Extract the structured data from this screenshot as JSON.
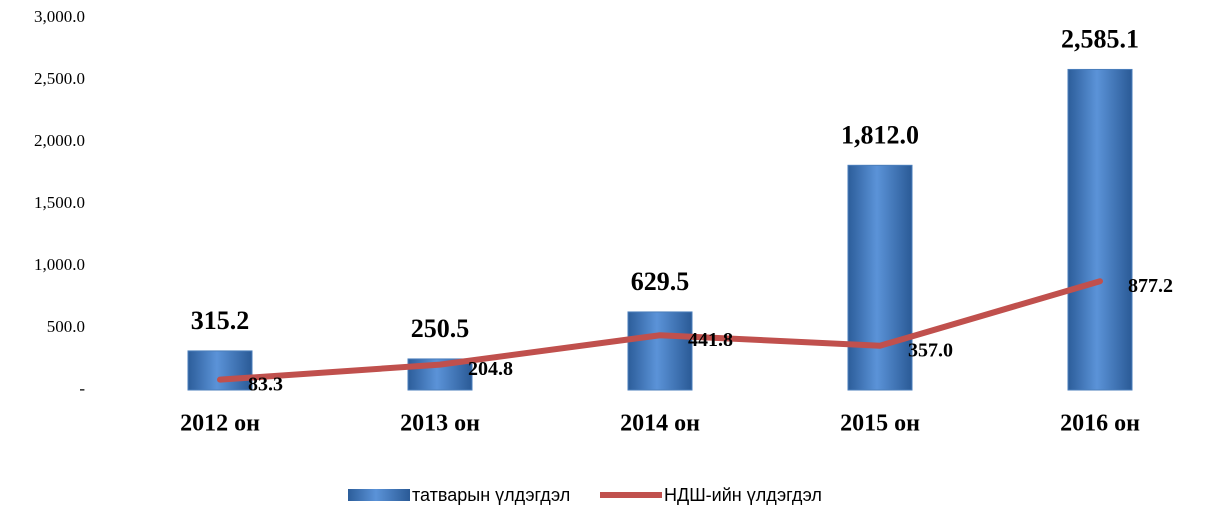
{
  "chart_data": {
    "type": "bar",
    "categories": [
      "2012 он",
      "2013 он",
      "2014 он",
      "2015 он",
      "2016 он"
    ],
    "series": [
      {
        "name": "татварын үлдэгдэл",
        "color": "#4a7ebb",
        "values": [
          315.2,
          250.5,
          629.5,
          1812.0,
          2585.1
        ],
        "value_labels": [
          "315.2",
          "250.5",
          "629.5",
          "1,812.0",
          "2,585.1"
        ]
      },
      {
        "name": "НДШ-ийн үлдэгдэл",
        "type": "line",
        "color": "#c0504d",
        "values": [
          83.3,
          204.8,
          441.8,
          357.0,
          877.2
        ],
        "value_labels": [
          "83.3",
          "204.8",
          "441.8",
          "357.0",
          "877.2"
        ]
      }
    ],
    "ylim": [
      0,
      3000
    ],
    "yticks": [
      {
        "value": 0,
        "label": "-"
      },
      {
        "value": 500,
        "label": "500.0"
      },
      {
        "value": 1000,
        "label": "1,000.0"
      },
      {
        "value": 1500,
        "label": "1,500.0"
      },
      {
        "value": 2000,
        "label": "2,000.0"
      },
      {
        "value": 2500,
        "label": "2,500.0"
      },
      {
        "value": 3000,
        "label": "3,000.0"
      }
    ],
    "legend": "bottom"
  }
}
